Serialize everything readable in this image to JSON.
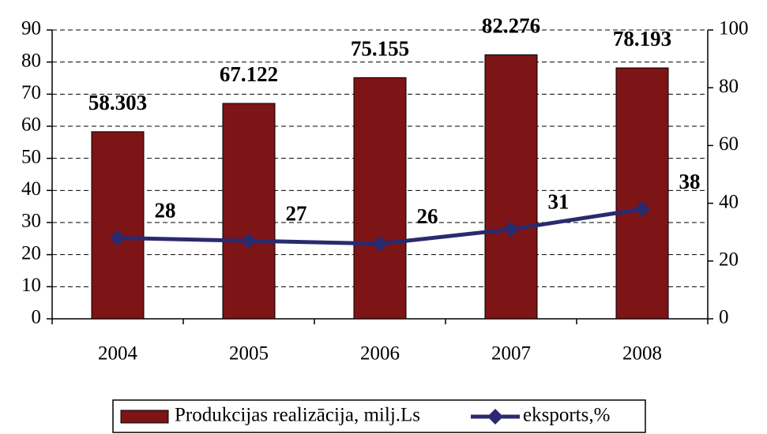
{
  "chart_data": {
    "type": "bar",
    "categories": [
      "2004",
      "2005",
      "2006",
      "2007",
      "2008"
    ],
    "series": [
      {
        "name": "Produkcijas realizācija, milj.Ls",
        "type": "bar",
        "color": "#7d1416",
        "values": [
          58.303,
          67.122,
          75.155,
          82.276,
          78.193
        ]
      },
      {
        "name": "eksports,%",
        "type": "line",
        "axis": "y2",
        "color": "#2a2a6e",
        "values": [
          28,
          27,
          26,
          31,
          38
        ]
      }
    ],
    "ylim": [
      0,
      90
    ],
    "yticks": [
      0,
      10,
      20,
      30,
      40,
      50,
      60,
      70,
      80,
      90
    ],
    "y2lim": [
      0,
      100
    ],
    "y2ticks": [
      0,
      20,
      40,
      60,
      80,
      100
    ],
    "grid": true,
    "legend": "bottom"
  }
}
